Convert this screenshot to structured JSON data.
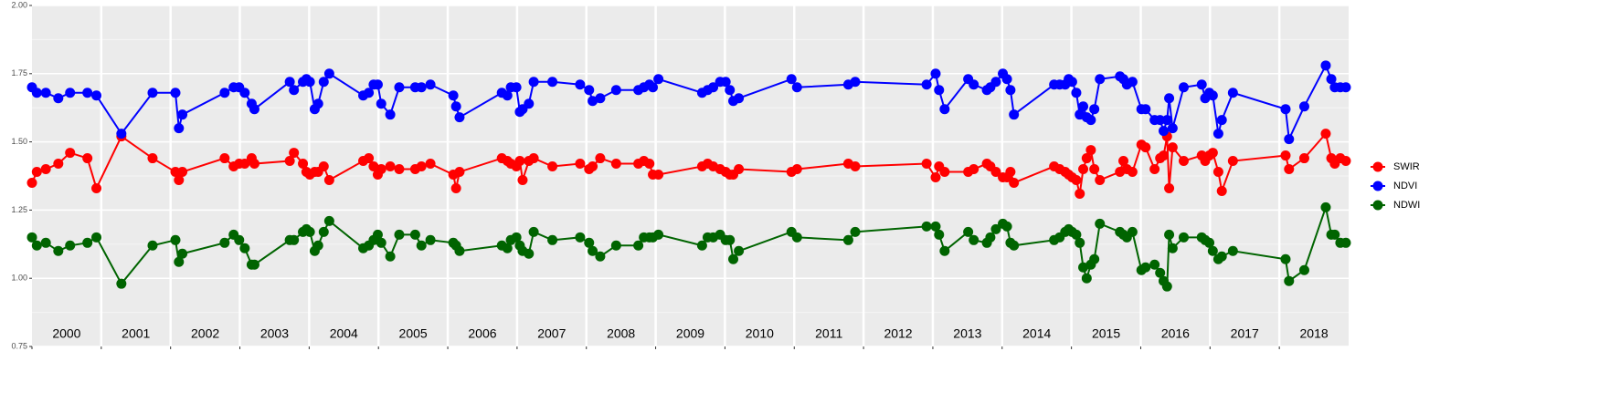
{
  "chart_data": {
    "type": "line",
    "x": [
      2000,
      2000.07,
      2000.2,
      2000.38,
      2000.55,
      2000.8,
      2000.93,
      2001.29,
      2001.74,
      2002.07,
      2002.12,
      2002.17,
      2002.78,
      2002.91,
      2002.99,
      2003.07,
      2003.17,
      2003.21,
      2003.72,
      2003.78,
      2003.91,
      2003.96,
      2004.01,
      2004.08,
      2004.13,
      2004.21,
      2004.29,
      2004.78,
      2004.86,
      2004.93,
      2004.99,
      2005.04,
      2005.17,
      2005.3,
      2005.53,
      2005.62,
      2005.75,
      2006.08,
      2006.12,
      2006.17,
      2006.78,
      2006.86,
      2006.91,
      2006.99,
      2007.04,
      2007.08,
      2007.17,
      2007.24,
      2007.51,
      2007.91,
      2008.04,
      2008.09,
      2008.2,
      2008.43,
      2008.75,
      2008.83,
      2008.91,
      2008.96,
      2009.04,
      2009.67,
      2009.75,
      2009.83,
      2009.93,
      2010.01,
      2010.07,
      2010.12,
      2010.2,
      2010.96,
      2011.04,
      2011.78,
      2011.88,
      2012.91,
      2013.04,
      2013.09,
      2013.17,
      2013.51,
      2013.59,
      2013.78,
      2013.83,
      2013.91,
      2014.01,
      2014.07,
      2014.12,
      2014.17,
      2014.75,
      2014.83,
      2014.91,
      2014.96,
      2015.01,
      2015.07,
      2015.12,
      2015.17,
      2015.22,
      2015.28,
      2015.33,
      2015.41,
      2015.7,
      2015.75,
      2015.8,
      2015.88,
      2016.01,
      2016.07,
      2016.2,
      2016.28,
      2016.33,
      2016.38,
      2016.41,
      2016.46,
      2016.62,
      2016.88,
      2016.93,
      2016.99,
      2017.04,
      2017.12,
      2017.17,
      2017.33,
      2018.09,
      2018.14,
      2018.36,
      2018.67,
      2018.75,
      2018.8,
      2018.88,
      2018.96
    ],
    "series": [
      {
        "name": "SWIR",
        "color": "#ff0000",
        "values": [
          1.35,
          1.39,
          1.4,
          1.42,
          1.46,
          1.44,
          1.33,
          1.52,
          1.44,
          1.39,
          1.36,
          1.39,
          1.44,
          1.41,
          1.42,
          1.42,
          1.44,
          1.42,
          1.43,
          1.46,
          1.42,
          1.39,
          1.38,
          1.39,
          1.39,
          1.41,
          1.36,
          1.43,
          1.44,
          1.41,
          1.38,
          1.4,
          1.41,
          1.4,
          1.4,
          1.41,
          1.42,
          1.38,
          1.33,
          1.39,
          1.44,
          1.43,
          1.42,
          1.41,
          1.43,
          1.36,
          1.43,
          1.44,
          1.41,
          1.42,
          1.4,
          1.41,
          1.44,
          1.42,
          1.42,
          1.43,
          1.42,
          1.38,
          1.38,
          1.41,
          1.42,
          1.41,
          1.4,
          1.39,
          1.38,
          1.38,
          1.4,
          1.39,
          1.4,
          1.42,
          1.41,
          1.42,
          1.37,
          1.41,
          1.39,
          1.39,
          1.4,
          1.42,
          1.41,
          1.39,
          1.37,
          1.37,
          1.39,
          1.35,
          1.41,
          1.4,
          1.39,
          1.38,
          1.37,
          1.36,
          1.31,
          1.4,
          1.44,
          1.47,
          1.4,
          1.36,
          1.39,
          1.43,
          1.4,
          1.39,
          1.49,
          1.48,
          1.4,
          1.44,
          1.45,
          1.52,
          1.33,
          1.48,
          1.43,
          1.45,
          1.43,
          1.45,
          1.46,
          1.39,
          1.32,
          1.43,
          1.45,
          1.4,
          1.44,
          1.53,
          1.44,
          1.42,
          1.44,
          1.43
        ]
      },
      {
        "name": "NDVI",
        "color": "#0000ff",
        "values": [
          1.7,
          1.68,
          1.68,
          1.66,
          1.68,
          1.68,
          1.67,
          1.53,
          1.68,
          1.68,
          1.55,
          1.6,
          1.68,
          1.7,
          1.7,
          1.68,
          1.64,
          1.62,
          1.72,
          1.69,
          1.72,
          1.73,
          1.72,
          1.62,
          1.64,
          1.72,
          1.75,
          1.67,
          1.68,
          1.71,
          1.71,
          1.64,
          1.6,
          1.7,
          1.7,
          1.7,
          1.71,
          1.67,
          1.63,
          1.59,
          1.68,
          1.67,
          1.7,
          1.7,
          1.61,
          1.62,
          1.64,
          1.72,
          1.72,
          1.71,
          1.69,
          1.65,
          1.66,
          1.69,
          1.69,
          1.7,
          1.71,
          1.7,
          1.73,
          1.68,
          1.69,
          1.7,
          1.72,
          1.72,
          1.69,
          1.65,
          1.66,
          1.73,
          1.7,
          1.71,
          1.72,
          1.71,
          1.75,
          1.69,
          1.62,
          1.73,
          1.71,
          1.69,
          1.7,
          1.72,
          1.75,
          1.73,
          1.69,
          1.6,
          1.71,
          1.71,
          1.71,
          1.73,
          1.72,
          1.68,
          1.6,
          1.63,
          1.59,
          1.58,
          1.62,
          1.73,
          1.74,
          1.73,
          1.71,
          1.72,
          1.62,
          1.62,
          1.58,
          1.58,
          1.54,
          1.58,
          1.66,
          1.55,
          1.7,
          1.71,
          1.66,
          1.68,
          1.67,
          1.53,
          1.58,
          1.68,
          1.62,
          1.51,
          1.63,
          1.78,
          1.73,
          1.7,
          1.7,
          1.7
        ]
      },
      {
        "name": "NDWI",
        "color": "#006400",
        "values": [
          1.15,
          1.12,
          1.13,
          1.1,
          1.12,
          1.13,
          1.15,
          0.98,
          1.12,
          1.14,
          1.06,
          1.09,
          1.13,
          1.16,
          1.14,
          1.11,
          1.05,
          1.05,
          1.14,
          1.14,
          1.17,
          1.18,
          1.17,
          1.1,
          1.12,
          1.17,
          1.21,
          1.11,
          1.12,
          1.14,
          1.16,
          1.13,
          1.08,
          1.16,
          1.16,
          1.12,
          1.14,
          1.13,
          1.12,
          1.1,
          1.12,
          1.11,
          1.14,
          1.15,
          1.12,
          1.1,
          1.09,
          1.17,
          1.14,
          1.15,
          1.13,
          1.1,
          1.08,
          1.12,
          1.12,
          1.15,
          1.15,
          1.15,
          1.16,
          1.12,
          1.15,
          1.15,
          1.16,
          1.14,
          1.14,
          1.07,
          1.1,
          1.17,
          1.15,
          1.14,
          1.17,
          1.19,
          1.19,
          1.16,
          1.1,
          1.17,
          1.14,
          1.13,
          1.15,
          1.18,
          1.2,
          1.19,
          1.13,
          1.12,
          1.14,
          1.15,
          1.17,
          1.18,
          1.17,
          1.16,
          1.13,
          1.04,
          1.0,
          1.05,
          1.07,
          1.2,
          1.17,
          1.16,
          1.15,
          1.17,
          1.03,
          1.04,
          1.05,
          1.02,
          0.99,
          0.97,
          1.16,
          1.11,
          1.15,
          1.15,
          1.14,
          1.13,
          1.1,
          1.07,
          1.08,
          1.1,
          1.07,
          0.99,
          1.03,
          1.26,
          1.16,
          1.16,
          1.13,
          1.13
        ]
      }
    ],
    "xlim": [
      2000,
      2019
    ],
    "xticks": [
      2000,
      2001,
      2002,
      2003,
      2004,
      2005,
      2006,
      2007,
      2008,
      2009,
      2010,
      2011,
      2012,
      2013,
      2014,
      2015,
      2016,
      2017,
      2018
    ],
    "ylim": [
      0.75,
      2
    ],
    "yticks": [
      0.75,
      {
        "value": 1,
        "label": "1.00"
      },
      1.25,
      {
        "value": 1.5,
        "label": "1.50"
      },
      1.75,
      {
        "value": 2,
        "label": "2.00"
      }
    ],
    "grid": true,
    "legend": "right"
  }
}
